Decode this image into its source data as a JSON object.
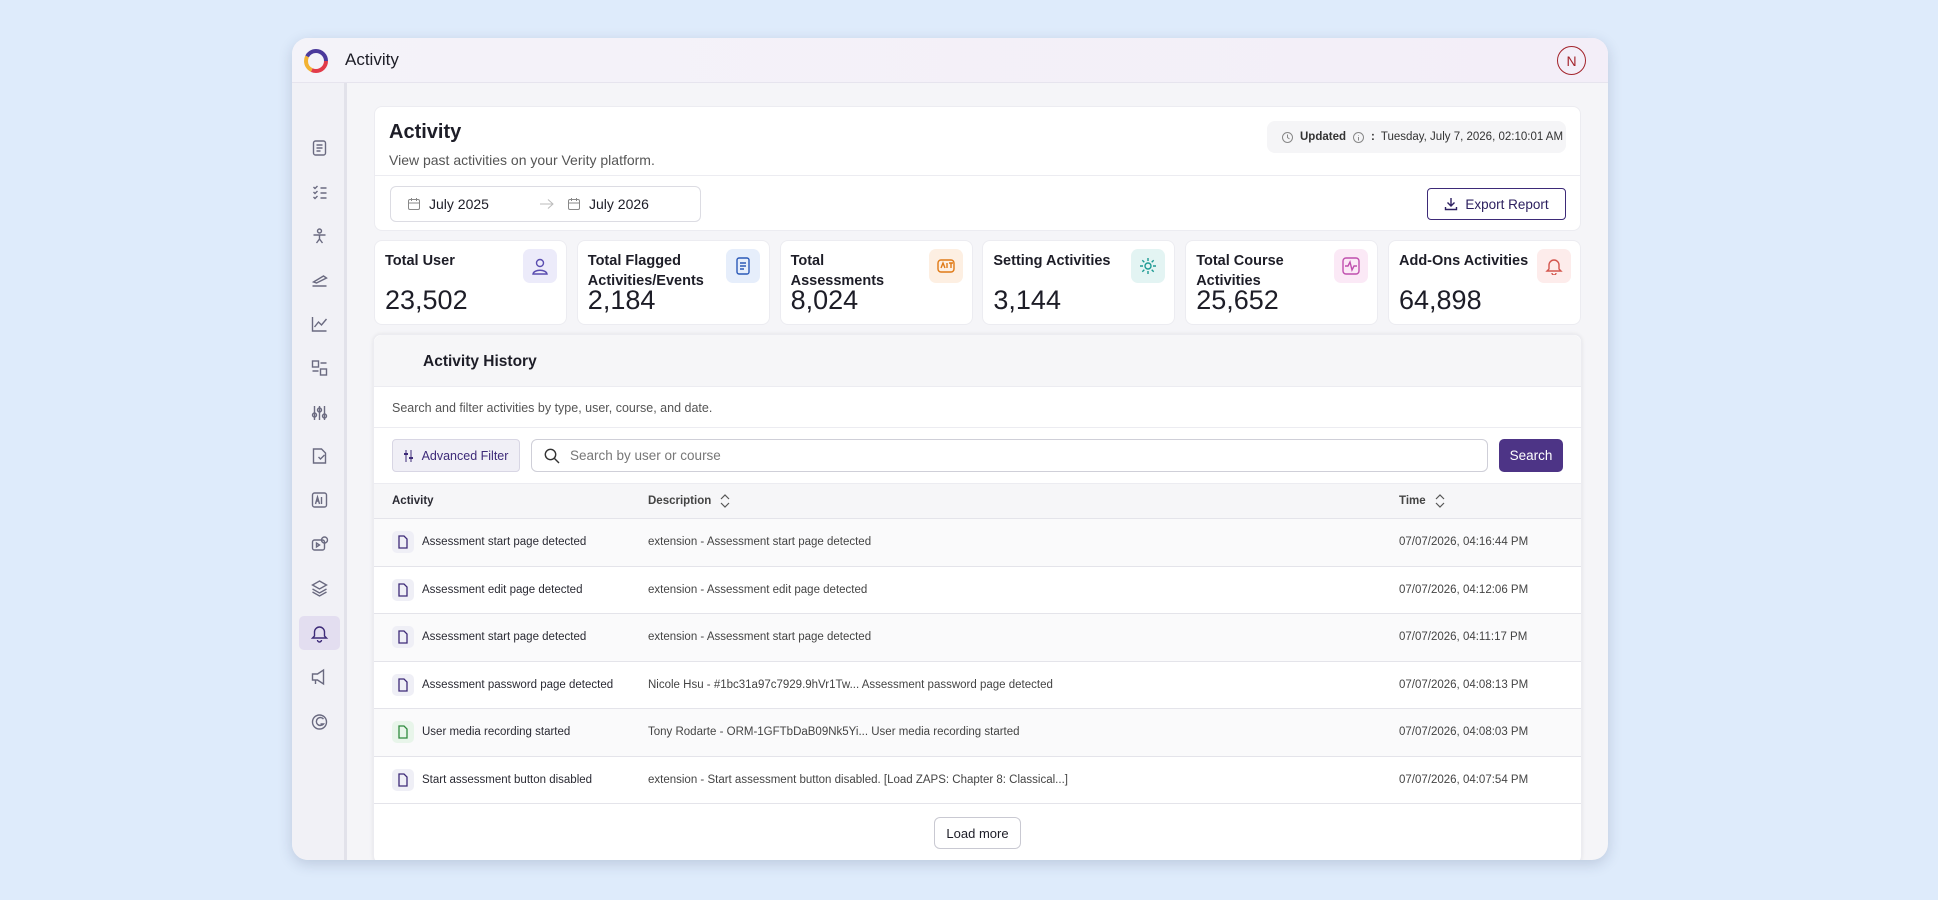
{
  "header": {
    "title": "Activity",
    "avatar": "N"
  },
  "page": {
    "title": "Activity",
    "subtitle": "View past activities on your Verity platform.",
    "updated_label": "Updated",
    "updated_time": "Tuesday, July 7, 2026, 02:10:01 AM",
    "date_from": "July 2025",
    "date_to": "July 2026",
    "export": "Export Report"
  },
  "stats": [
    {
      "label": "Total User",
      "value": "23,502"
    },
    {
      "label": "Total Flagged Activities/Events",
      "value": "2,184"
    },
    {
      "label": "Total Assessments",
      "value": "8,024"
    },
    {
      "label": "Setting Activities",
      "value": "3,144"
    },
    {
      "label": "Total Course Activities",
      "value": "25,652"
    },
    {
      "label": "Add-Ons Activities",
      "value": "64,898"
    }
  ],
  "history": {
    "title": "Activity History",
    "description": "Search and filter activities by type, user, course, and date.",
    "filter": "Advanced Filter",
    "search_placeholder": "Search by user or course",
    "search_button": "Search",
    "columns": [
      "Activity",
      "Description",
      "Time"
    ],
    "rows": [
      [
        "Assessment start page detected",
        "extension - Assessment start page detected",
        "07/07/2026, 04:16:44 PM"
      ],
      [
        "Assessment edit page detected",
        "extension - Assessment edit page detected",
        "07/07/2026, 04:12:06 PM"
      ],
      [
        "Assessment start page detected",
        "extension - Assessment start page detected",
        "07/07/2026, 04:11:17 PM"
      ],
      [
        "Assessment password page detected",
        "Nicole Hsu - #1bc31a97c7929.9hVr1Tw... Assessment password page detected",
        "07/07/2026, 04:08:13 PM"
      ],
      [
        "User media recording started",
        "Tony Rodarte - ORM-1GFTbDaB09Nk5Yi... User media recording started",
        "07/07/2026, 04:08:03 PM"
      ],
      [
        "Start assessment button disabled",
        "extension - Start assessment button disabled. [Load ZAPS: Chapter 8: Classical...]",
        "07/07/2026, 04:07:54 PM"
      ]
    ],
    "load_more": "Load more"
  }
}
